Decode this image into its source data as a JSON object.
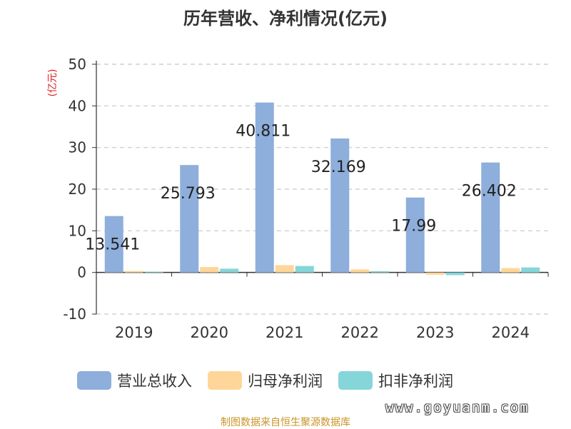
{
  "chart_data": {
    "type": "bar",
    "title": "历年营收、净利情况(亿元)",
    "ylabel": "(亿元)",
    "xlabel": "",
    "categories": [
      "2019",
      "2020",
      "2021",
      "2022",
      "2023",
      "2024"
    ],
    "ylim": [
      -10,
      50
    ],
    "yticks": [
      -10,
      0,
      10,
      20,
      30,
      40,
      50
    ],
    "grid": true,
    "legend_position": "bottom",
    "series": [
      {
        "name": "营业总收入",
        "color": "#8eaedb",
        "values": [
          13.541,
          25.793,
          40.811,
          32.169,
          17.99,
          26.402
        ],
        "labels": [
          "13.541",
          "25.793",
          "40.811",
          "32.169",
          "17.99",
          "26.402"
        ]
      },
      {
        "name": "归母净利润",
        "color": "#ffd699",
        "values": [
          0.35,
          1.3,
          1.75,
          0.75,
          -0.55,
          1.05
        ]
      },
      {
        "name": "扣非净利润",
        "color": "#86d5d9",
        "values": [
          0.15,
          0.9,
          1.55,
          0.3,
          -0.65,
          1.2
        ]
      }
    ]
  },
  "source": "制图数据来自恒生聚源数据库",
  "watermark": "www.goyuanm.com"
}
